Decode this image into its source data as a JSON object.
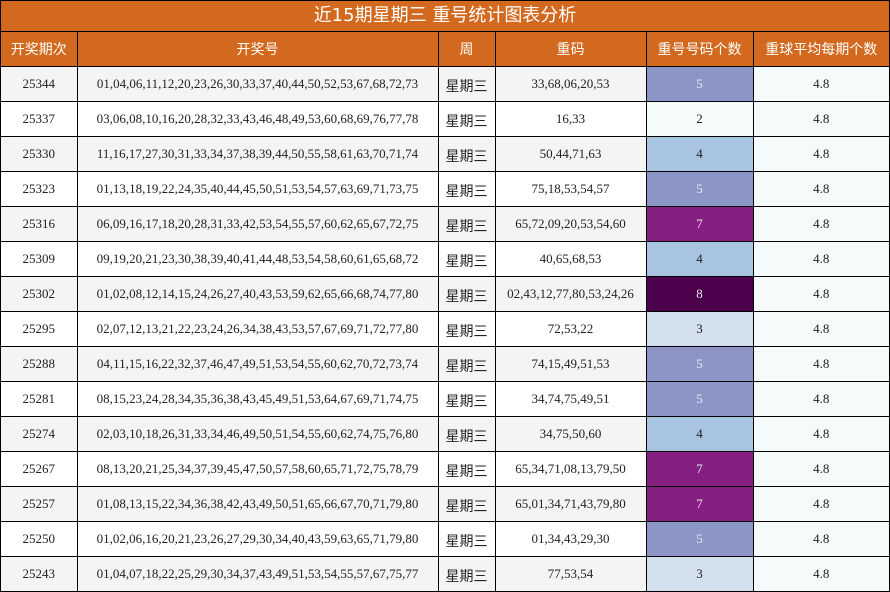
{
  "title": "近15期星期三 重号统计图表分析",
  "headers": [
    "开奖期次",
    "开奖号",
    "周",
    "重码",
    "重号号码个数",
    "重球平均每期个数"
  ],
  "colors": {
    "header_bg": "#d2691e",
    "header_text": "#ffffff",
    "count_scale": {
      "2": "#f5fbfb",
      "3": "#d3e1ee",
      "4": "#a9c4e0",
      "5": "#8c96c6",
      "7": "#852082",
      "8": "#4d004b"
    }
  },
  "rows": [
    {
      "issue": "25344",
      "numbers": "01,04,06,11,12,20,23,26,30,33,37,40,44,50,52,53,67,68,72,73",
      "week": "星期三",
      "repeats": "33,68,06,20,53",
      "count": "5",
      "avg": "4.8"
    },
    {
      "issue": "25337",
      "numbers": "03,06,08,10,16,20,28,32,33,43,46,48,49,53,60,68,69,76,77,78",
      "week": "星期三",
      "repeats": "16,33",
      "count": "2",
      "avg": "4.8"
    },
    {
      "issue": "25330",
      "numbers": "11,16,17,27,30,31,33,34,37,38,39,44,50,55,58,61,63,70,71,74",
      "week": "星期三",
      "repeats": "50,44,71,63",
      "count": "4",
      "avg": "4.8"
    },
    {
      "issue": "25323",
      "numbers": "01,13,18,19,22,24,35,40,44,45,50,51,53,54,57,63,69,71,73,75",
      "week": "星期三",
      "repeats": "75,18,53,54,57",
      "count": "5",
      "avg": "4.8"
    },
    {
      "issue": "25316",
      "numbers": "06,09,16,17,18,20,28,31,33,42,53,54,55,57,60,62,65,67,72,75",
      "week": "星期三",
      "repeats": "65,72,09,20,53,54,60",
      "count": "7",
      "avg": "4.8"
    },
    {
      "issue": "25309",
      "numbers": "09,19,20,21,23,30,38,39,40,41,44,48,53,54,58,60,61,65,68,72",
      "week": "星期三",
      "repeats": "40,65,68,53",
      "count": "4",
      "avg": "4.8"
    },
    {
      "issue": "25302",
      "numbers": "01,02,08,12,14,15,24,26,27,40,43,53,59,62,65,66,68,74,77,80",
      "week": "星期三",
      "repeats": "02,43,12,77,80,53,24,26",
      "count": "8",
      "avg": "4.8"
    },
    {
      "issue": "25295",
      "numbers": "02,07,12,13,21,22,23,24,26,34,38,43,53,57,67,69,71,72,77,80",
      "week": "星期三",
      "repeats": "72,53,22",
      "count": "3",
      "avg": "4.8"
    },
    {
      "issue": "25288",
      "numbers": "04,11,15,16,22,32,37,46,47,49,51,53,54,55,60,62,70,72,73,74",
      "week": "星期三",
      "repeats": "74,15,49,51,53",
      "count": "5",
      "avg": "4.8"
    },
    {
      "issue": "25281",
      "numbers": "08,15,23,24,28,34,35,36,38,43,45,49,51,53,64,67,69,71,74,75",
      "week": "星期三",
      "repeats": "34,74,75,49,51",
      "count": "5",
      "avg": "4.8"
    },
    {
      "issue": "25274",
      "numbers": "02,03,10,18,26,31,33,34,46,49,50,51,54,55,60,62,74,75,76,80",
      "week": "星期三",
      "repeats": "34,75,50,60",
      "count": "4",
      "avg": "4.8"
    },
    {
      "issue": "25267",
      "numbers": "08,13,20,21,25,34,37,39,45,47,50,57,58,60,65,71,72,75,78,79",
      "week": "星期三",
      "repeats": "65,34,71,08,13,79,50",
      "count": "7",
      "avg": "4.8"
    },
    {
      "issue": "25257",
      "numbers": "01,08,13,15,22,34,36,38,42,43,49,50,51,65,66,67,70,71,79,80",
      "week": "星期三",
      "repeats": "65,01,34,71,43,79,80",
      "count": "7",
      "avg": "4.8"
    },
    {
      "issue": "25250",
      "numbers": "01,02,06,16,20,21,23,26,27,29,30,34,40,43,59,63,65,71,79,80",
      "week": "星期三",
      "repeats": "01,34,43,29,30",
      "count": "5",
      "avg": "4.8"
    },
    {
      "issue": "25243",
      "numbers": "01,04,07,18,22,25,29,30,34,37,43,49,51,53,54,55,57,67,75,77",
      "week": "星期三",
      "repeats": "77,53,54",
      "count": "3",
      "avg": "4.8"
    }
  ]
}
